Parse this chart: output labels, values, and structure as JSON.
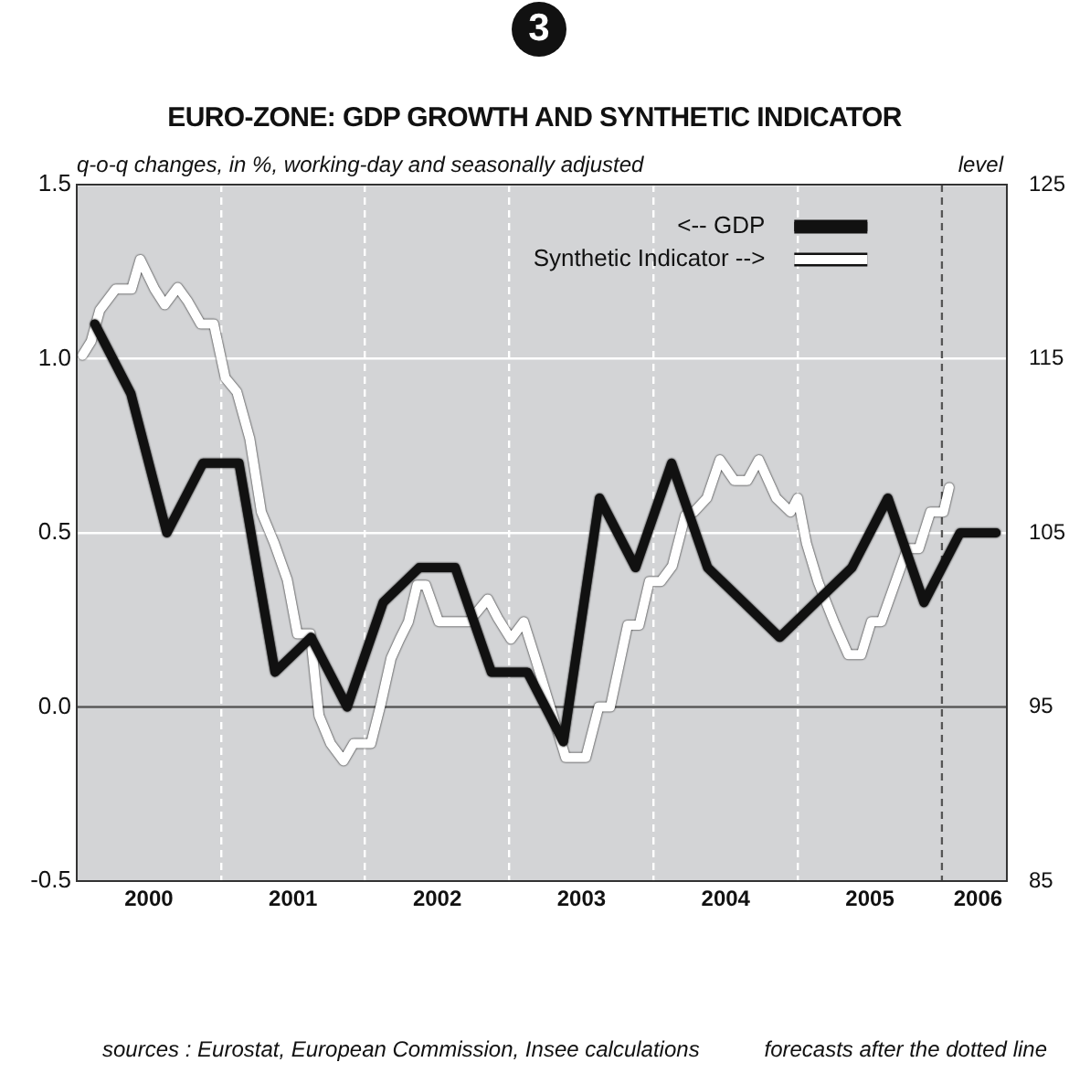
{
  "chart_data": {
    "type": "line",
    "title": "EURO-ZONE: GDP GROWTH AND SYNTHETIC INDICATOR",
    "ylabel": "q-o-q changes, in %, working-day and seasonally adjusted",
    "y2label": "level",
    "annotations": [
      "3",
      "sources : Eurostat, European Commission, Insee calculations",
      "forecasts after the dotted line"
    ],
    "xlim": [
      2000,
      2006.45
    ],
    "xticks": [
      {
        "value": 2000.5,
        "label": "2000"
      },
      {
        "value": 2001,
        "label": null
      },
      {
        "value": 2001.5,
        "label": "2001"
      },
      {
        "value": 2002,
        "label": null
      },
      {
        "value": 2002.5,
        "label": "2002"
      },
      {
        "value": 2003,
        "label": null
      },
      {
        "value": 2003.5,
        "label": "2003"
      },
      {
        "value": 2004,
        "label": null
      },
      {
        "value": 2004.5,
        "label": "2004"
      },
      {
        "value": 2005,
        "label": null
      },
      {
        "value": 2005.5,
        "label": "2005"
      },
      {
        "value": 2006,
        "label": null
      },
      {
        "value": 2006.25,
        "label": "2006"
      }
    ],
    "ylim": [
      -0.5,
      1.5
    ],
    "yticks": [
      -0.5,
      {
        "value": 0,
        "label": "0.0"
      },
      0.5,
      {
        "value": 1,
        "label": "1.0"
      },
      1.5
    ],
    "y2lim": [
      85,
      125
    ],
    "y2ticks": [
      85,
      95,
      105,
      115,
      125
    ],
    "grid": true,
    "legend": "top right",
    "marker": "none",
    "line_style": "solid",
    "ref_lines": [
      {
        "axis": "y",
        "value": 0,
        "color": "#555555",
        "line_style": "solid"
      },
      {
        "axis": "x",
        "value": 2006,
        "color": "#555555",
        "line_style": "dashed"
      }
    ],
    "series": [
      {
        "name": "<-- GDP",
        "color": "#111111",
        "axis": "y",
        "x": [
          2000.125,
          2000.375,
          2000.625,
          2000.875,
          2001.125,
          2001.375,
          2001.625,
          2001.875,
          2002.125,
          2002.375,
          2002.625,
          2002.875,
          2003.125,
          2003.375,
          2003.625,
          2003.875,
          2004.125,
          2004.375,
          2004.625,
          2004.875,
          2005.125,
          2005.375,
          2005.625,
          2005.875,
          2006.125,
          2006.375
        ],
        "values": [
          1.1,
          0.9,
          0.5,
          0.7,
          0.7,
          0.1,
          0.2,
          0.0,
          0.3,
          0.4,
          0.4,
          0.1,
          0.1,
          -0.1,
          0.6,
          0.4,
          0.7,
          0.4,
          0.3,
          0.2,
          0.3,
          0.4,
          0.6,
          0.3,
          0.5,
          0.5
        ]
      },
      {
        "name": "Synthetic Indicator -->",
        "color": "#ffffff",
        "axis": "y2",
        "x": [
          2000.04,
          2000.1,
          2000.16,
          2000.27,
          2000.38,
          2000.44,
          2000.54,
          2000.61,
          2000.7,
          2000.77,
          2000.86,
          2000.95,
          2001.03,
          2001.11,
          2001.2,
          2001.28,
          2001.37,
          2001.46,
          2001.53,
          2001.62,
          2001.68,
          2001.76,
          2001.85,
          2001.92,
          2002.04,
          2002.11,
          2002.18,
          2002.24,
          2002.3,
          2002.36,
          2002.42,
          2002.51,
          2002.61,
          2002.72,
          2002.85,
          2002.92,
          2003.01,
          2003.1,
          2003.18,
          2003.39,
          2003.53,
          2003.62,
          2003.7,
          2003.82,
          2003.9,
          2003.97,
          2004.05,
          2004.13,
          2004.22,
          2004.28,
          2004.37,
          2004.46,
          2004.56,
          2004.65,
          2004.73,
          2004.85,
          2004.95,
          2005.0,
          2005.06,
          2005.14,
          2005.25,
          2005.35,
          2005.44,
          2005.51,
          2005.58,
          2005.67,
          2005.76,
          2005.84,
          2005.92,
          2006.01,
          2006.05
        ],
        "values": [
          115.2,
          116.0,
          117.8,
          119.0,
          119.0,
          120.7,
          119.0,
          118.1,
          119.1,
          118.3,
          117.0,
          117.0,
          113.9,
          113.1,
          110.4,
          106.2,
          104.4,
          102.3,
          99.2,
          99.2,
          94.5,
          92.9,
          91.9,
          92.9,
          92.9,
          95.2,
          97.8,
          98.9,
          99.9,
          102.0,
          102.0,
          99.9,
          99.9,
          99.9,
          101.2,
          100.1,
          98.9,
          99.9,
          97.8,
          92.1,
          92.1,
          95.0,
          95.0,
          99.7,
          99.7,
          102.2,
          102.2,
          103.1,
          106.0,
          106.2,
          107.0,
          109.2,
          108.0,
          108.0,
          109.2,
          107.0,
          106.2,
          107.0,
          104.4,
          102.2,
          99.9,
          98.0,
          98.0,
          99.9,
          99.9,
          102.0,
          104.1,
          104.1,
          106.2,
          106.2,
          107.6
        ]
      }
    ]
  }
}
